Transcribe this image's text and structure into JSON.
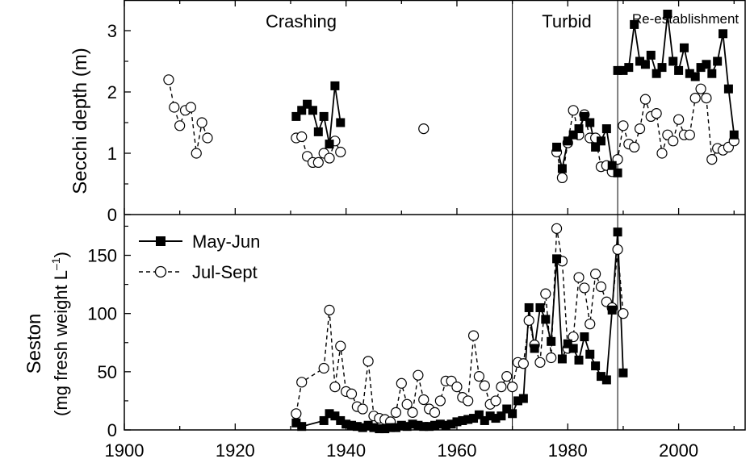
{
  "chart_data": {
    "type": "line",
    "x_axis": {
      "ticks": [
        1900,
        1920,
        1940,
        1960,
        1980,
        2000
      ],
      "range": [
        1900,
        2012
      ]
    },
    "periods": [
      {
        "label": "Crashing",
        "end": 1970
      },
      {
        "label": "Turbid",
        "start": 1970,
        "end": 1989
      },
      {
        "label": "Re-establishment",
        "start": 1989
      }
    ],
    "legend": {
      "entries": [
        "May-Jun",
        "Jul-Sept"
      ],
      "position": "top-left of lower panel"
    },
    "panels": [
      {
        "id": "secchi",
        "ylabel": "Secchi depth (m)",
        "ylim": [
          0,
          3.5
        ],
        "yticks": [
          0,
          1,
          2,
          3
        ],
        "series": [
          {
            "name": "May-Jun",
            "marker": "filled-square",
            "line": "solid",
            "segments": [
              [
                [
                  1931,
                  1.6
                ],
                [
                  1932,
                  1.7
                ],
                [
                  1933,
                  1.8
                ],
                [
                  1934,
                  1.7
                ],
                [
                  1935,
                  1.35
                ],
                [
                  1936,
                  1.6
                ],
                [
                  1937,
                  1.15
                ],
                [
                  1938,
                  2.1
                ],
                [
                  1939,
                  1.5
                ]
              ],
              [
                [
                  1978,
                  1.1
                ],
                [
                  1979,
                  0.75
                ],
                [
                  1980,
                  1.2
                ],
                [
                  1981,
                  1.3
                ],
                [
                  1982,
                  1.4
                ],
                [
                  1983,
                  1.6
                ],
                [
                  1984,
                  1.5
                ],
                [
                  1985,
                  1.1
                ],
                [
                  1986,
                  1.2
                ],
                [
                  1987,
                  1.4
                ],
                [
                  1988,
                  0.8
                ],
                [
                  1989,
                  0.68
                ]
              ],
              [
                [
                  1989,
                  2.35
                ],
                [
                  1990,
                  2.35
                ],
                [
                  1991,
                  2.4
                ],
                [
                  1992,
                  3.1
                ],
                [
                  1993,
                  2.5
                ],
                [
                  1994,
                  2.45
                ],
                [
                  1995,
                  2.6
                ],
                [
                  1996,
                  2.3
                ],
                [
                  1997,
                  2.4
                ],
                [
                  1998,
                  3.27
                ],
                [
                  1999,
                  2.5
                ],
                [
                  2000,
                  2.35
                ],
                [
                  2001,
                  2.72
                ],
                [
                  2002,
                  2.3
                ],
                [
                  2003,
                  2.25
                ],
                [
                  2004,
                  2.4
                ],
                [
                  2005,
                  2.45
                ],
                [
                  2006,
                  2.3
                ],
                [
                  2007,
                  2.5
                ],
                [
                  2008,
                  2.95
                ],
                [
                  2009,
                  2.05
                ],
                [
                  2010,
                  1.3
                ]
              ]
            ]
          },
          {
            "name": "Jul-Sept",
            "marker": "open-circle",
            "line": "dashed",
            "segments": [
              [
                [
                  1908,
                  2.2
                ],
                [
                  1909,
                  1.75
                ],
                [
                  1910,
                  1.45
                ],
                [
                  1911,
                  1.7
                ],
                [
                  1912,
                  1.75
                ],
                [
                  1913,
                  1.0
                ],
                [
                  1914,
                  1.5
                ],
                [
                  1915,
                  1.25
                ]
              ],
              [
                [
                  1931,
                  1.25
                ],
                [
                  1932,
                  1.27
                ],
                [
                  1933,
                  0.95
                ],
                [
                  1934,
                  0.85
                ],
                [
                  1935,
                  0.85
                ],
                [
                  1936,
                  1.0
                ],
                [
                  1937,
                  0.92
                ],
                [
                  1938,
                  1.2
                ],
                [
                  1939,
                  1.02
                ]
              ],
              [
                [
                  1954,
                  1.4
                ]
              ],
              [
                [
                  1978,
                  1.02
                ],
                [
                  1979,
                  0.6
                ],
                [
                  1980,
                  1.17
                ],
                [
                  1981,
                  1.7
                ],
                [
                  1982,
                  1.3
                ],
                [
                  1983,
                  1.63
                ],
                [
                  1984,
                  1.25
                ],
                [
                  1985,
                  1.25
                ],
                [
                  1986,
                  0.78
                ],
                [
                  1987,
                  0.8
                ],
                [
                  1988,
                  0.7
                ],
                [
                  1989,
                  0.9
                ],
                [
                  1990,
                  1.45
                ],
                [
                  1991,
                  1.15
                ],
                [
                  1992,
                  1.1
                ],
                [
                  1993,
                  1.4
                ],
                [
                  1994,
                  1.88
                ],
                [
                  1995,
                  1.6
                ],
                [
                  1996,
                  1.65
                ],
                [
                  1997,
                  1.0
                ],
                [
                  1998,
                  1.3
                ],
                [
                  1999,
                  1.2
                ],
                [
                  2000,
                  1.55
                ],
                [
                  2001,
                  1.3
                ],
                [
                  2002,
                  1.3
                ],
                [
                  2003,
                  1.9
                ],
                [
                  2004,
                  2.05
                ],
                [
                  2005,
                  1.9
                ],
                [
                  2006,
                  0.9
                ],
                [
                  2007,
                  1.08
                ],
                [
                  2008,
                  1.05
                ],
                [
                  2009,
                  1.1
                ],
                [
                  2010,
                  1.2
                ]
              ]
            ]
          }
        ]
      },
      {
        "id": "seston",
        "ylabel_line1": "Seston",
        "ylabel_line2_prefix": "(mg fresh weight L",
        "ylabel_line2_sup": "–1",
        "ylabel_line2_suffix": ")",
        "ylim": [
          0,
          185
        ],
        "yticks": [
          0,
          50,
          100,
          150
        ],
        "series": [
          {
            "name": "May-Jun",
            "marker": "filled-square",
            "line": "solid",
            "segments": [
              [
                [
                  1931,
                  6
                ],
                [
                  1932,
                  3
                ],
                [
                  1936,
                  8
                ],
                [
                  1937,
                  14
                ],
                [
                  1938,
                  12
                ],
                [
                  1939,
                  8
                ],
                [
                  1940,
                  5
                ],
                [
                  1941,
                  4
                ],
                [
                  1942,
                  3
                ],
                [
                  1943,
                  2
                ],
                [
                  1944,
                  4
                ],
                [
                  1945,
                  2
                ],
                [
                  1946,
                  1
                ],
                [
                  1947,
                  1
                ],
                [
                  1948,
                  2
                ],
                [
                  1949,
                  2
                ],
                [
                  1950,
                  4
                ],
                [
                  1951,
                  3
                ],
                [
                  1952,
                  5
                ],
                [
                  1953,
                  4
                ],
                [
                  1954,
                  3
                ],
                [
                  1955,
                  3
                ],
                [
                  1956,
                  4
                ],
                [
                  1957,
                  5
                ],
                [
                  1958,
                  4
                ],
                [
                  1959,
                  5
                ],
                [
                  1960,
                  7
                ],
                [
                  1961,
                  8
                ],
                [
                  1962,
                  9
                ],
                [
                  1963,
                  10
                ],
                [
                  1964,
                  13
                ],
                [
                  1965,
                  8
                ],
                [
                  1966,
                  12
                ],
                [
                  1967,
                  10
                ],
                [
                  1968,
                  12
                ],
                [
                  1969,
                  18
                ],
                [
                  1970,
                  14
                ],
                [
                  1971,
                  25
                ],
                [
                  1972,
                  27
                ],
                [
                  1973,
                  105
                ],
                [
                  1974,
                  70
                ],
                [
                  1975,
                  105
                ],
                [
                  1976,
                  95
                ],
                [
                  1977,
                  76
                ],
                [
                  1978,
                  147
                ],
                [
                  1979,
                  61
                ],
                [
                  1980,
                  74
                ],
                [
                  1981,
                  70
                ],
                [
                  1982,
                  60
                ],
                [
                  1983,
                  80
                ],
                [
                  1984,
                  65
                ],
                [
                  1985,
                  55
                ],
                [
                  1986,
                  46
                ],
                [
                  1987,
                  43
                ],
                [
                  1988,
                  103
                ],
                [
                  1989,
                  170
                ],
                [
                  1990,
                  49
                ]
              ]
            ]
          },
          {
            "name": "Jul-Sept",
            "marker": "open-circle",
            "line": "dashed",
            "segments": [
              [
                [
                  1931,
                  14
                ],
                [
                  1932,
                  41
                ],
                [
                  1936,
                  53
                ],
                [
                  1937,
                  103
                ],
                [
                  1938,
                  37
                ],
                [
                  1939,
                  72
                ],
                [
                  1940,
                  33
                ],
                [
                  1941,
                  31
                ],
                [
                  1942,
                  20
                ],
                [
                  1943,
                  18
                ],
                [
                  1944,
                  59
                ],
                [
                  1945,
                  12
                ],
                [
                  1946,
                  10
                ],
                [
                  1947,
                  9
                ],
                [
                  1948,
                  7
                ],
                [
                  1949,
                  15
                ],
                [
                  1950,
                  40
                ],
                [
                  1951,
                  22
                ],
                [
                  1952,
                  15
                ],
                [
                  1953,
                  47
                ],
                [
                  1954,
                  26
                ],
                [
                  1955,
                  18
                ],
                [
                  1956,
                  15
                ],
                [
                  1957,
                  25
                ],
                [
                  1958,
                  42
                ],
                [
                  1959,
                  42
                ],
                [
                  1960,
                  37
                ],
                [
                  1961,
                  28
                ],
                [
                  1962,
                  25
                ],
                [
                  1963,
                  81
                ],
                [
                  1964,
                  46
                ],
                [
                  1965,
                  38
                ],
                [
                  1966,
                  22
                ],
                [
                  1967,
                  25
                ],
                [
                  1968,
                  37
                ],
                [
                  1969,
                  46
                ],
                [
                  1970,
                  37
                ],
                [
                  1971,
                  58
                ],
                [
                  1972,
                  57
                ],
                [
                  1973,
                  94
                ],
                [
                  1974,
                  73
                ],
                [
                  1975,
                  58
                ],
                [
                  1976,
                  117
                ],
                [
                  1977,
                  62
                ],
                [
                  1978,
                  173
                ],
                [
                  1979,
                  145
                ],
                [
                  1980,
                  70
                ],
                [
                  1981,
                  80
                ],
                [
                  1982,
                  131
                ],
                [
                  1983,
                  122
                ],
                [
                  1984,
                  91
                ],
                [
                  1985,
                  134
                ],
                [
                  1986,
                  123
                ],
                [
                  1987,
                  110
                ],
                [
                  1988,
                  105
                ],
                [
                  1989,
                  155
                ],
                [
                  1990,
                  100
                ]
              ]
            ]
          }
        ]
      }
    ]
  }
}
